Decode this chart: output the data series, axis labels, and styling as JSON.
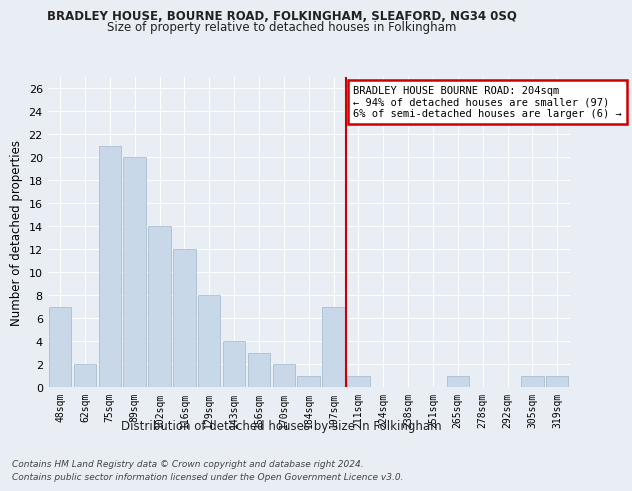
{
  "title": "BRADLEY HOUSE, BOURNE ROAD, FOLKINGHAM, SLEAFORD, NG34 0SQ",
  "subtitle": "Size of property relative to detached houses in Folkingham",
  "xlabel_bottom": "Distribution of detached houses by size in Folkingham",
  "ylabel": "Number of detached properties",
  "categories": [
    "48sqm",
    "62sqm",
    "75sqm",
    "89sqm",
    "102sqm",
    "116sqm",
    "129sqm",
    "143sqm",
    "156sqm",
    "170sqm",
    "184sqm",
    "197sqm",
    "211sqm",
    "224sqm",
    "238sqm",
    "251sqm",
    "265sqm",
    "278sqm",
    "292sqm",
    "305sqm",
    "319sqm"
  ],
  "values": [
    7,
    2,
    21,
    20,
    14,
    12,
    8,
    4,
    3,
    2,
    1,
    7,
    1,
    0,
    0,
    0,
    1,
    0,
    0,
    1,
    1
  ],
  "bar_color": "#c8d8e8",
  "bar_edge_color": "#a0b8cc",
  "highlight_index": 11,
  "vline_index": 11,
  "annotation_title": "BRADLEY HOUSE BOURNE ROAD: 204sqm",
  "annotation_line1": "← 94% of detached houses are smaller (97)",
  "annotation_line2": "6% of semi-detached houses are larger (6) →",
  "annotation_box_color": "#ffffff",
  "annotation_border_color": "#cc0000",
  "vline_color": "#cc0000",
  "ylim": [
    0,
    27
  ],
  "yticks": [
    0,
    2,
    4,
    6,
    8,
    10,
    12,
    14,
    16,
    18,
    20,
    22,
    24,
    26
  ],
  "footer1": "Contains HM Land Registry data © Crown copyright and database right 2024.",
  "footer2": "Contains public sector information licensed under the Open Government Licence v3.0.",
  "bg_color": "#e8eef4",
  "grid_color": "#ffffff"
}
